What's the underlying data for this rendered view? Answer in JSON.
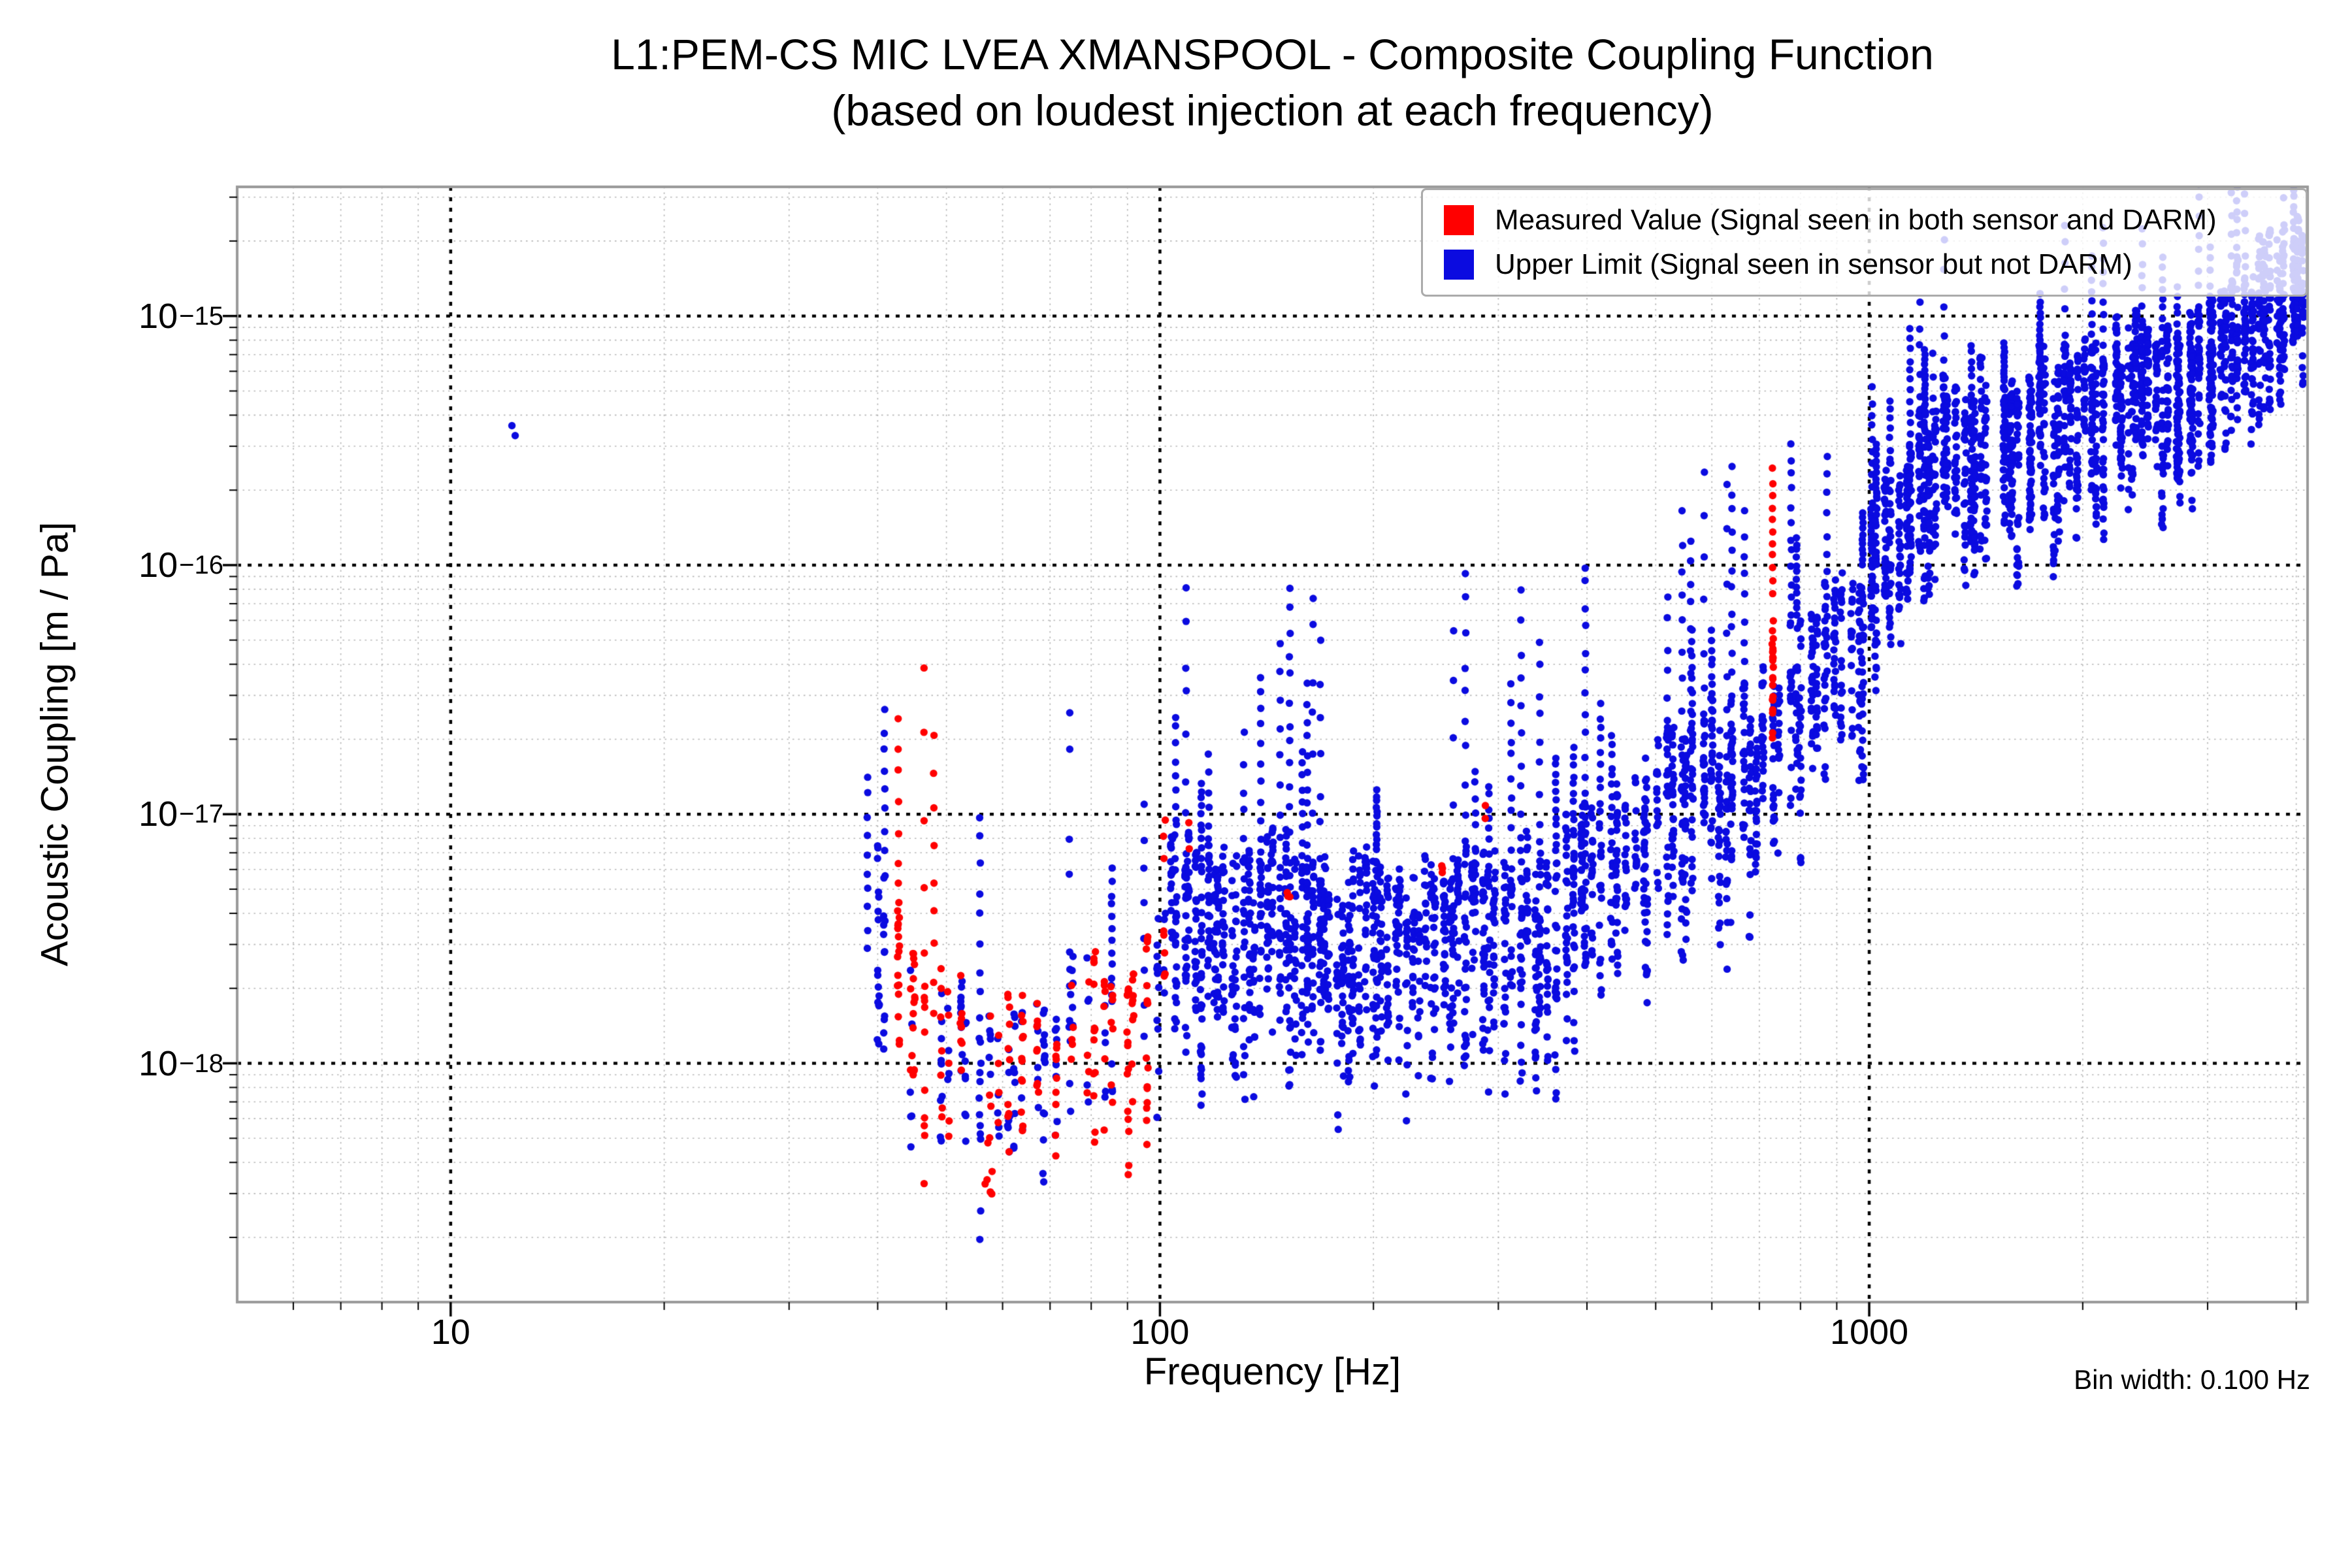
{
  "title": {
    "line1": "L1:PEM-CS MIC LVEA XMANSPOOL - Composite Coupling Function",
    "line2": "(based on loudest injection at each frequency)"
  },
  "axes": {
    "xlabel": "Frequency [Hz]",
    "ylabel": "Acoustic Coupling [m / Pa]",
    "x_ticks": [
      {
        "value": 10,
        "label": "10"
      },
      {
        "value": 100,
        "label": "100"
      },
      {
        "value": 1000,
        "label": "1000"
      }
    ],
    "y_ticks": [
      {
        "exp": -15,
        "base": "10",
        "sup": "−15"
      },
      {
        "exp": -16,
        "base": "10",
        "sup": "−16"
      },
      {
        "exp": -17,
        "base": "10",
        "sup": "−17"
      },
      {
        "exp": -18,
        "base": "10",
        "sup": "−18"
      }
    ]
  },
  "annotation": {
    "bin_width": "Bin width: 0.100 Hz"
  },
  "legend": {
    "items": [
      {
        "label": "Measured Value (Signal seen in both sensor and DARM)",
        "color": "#ff0000",
        "series": "measured"
      },
      {
        "label": "Upper Limit (Signal seen in sensor but not DARM)",
        "color": "#0b0be0",
        "series": "upper_limit"
      }
    ]
  },
  "chart_data": {
    "type": "scatter",
    "title": "L1:PEM-CS MIC LVEA XMANSPOOL - Composite Coupling Function (based on loudest injection at each frequency)",
    "xlabel": "Frequency [Hz]",
    "ylabel": "Acoustic Coupling [m / Pa]",
    "x_scale": "log",
    "y_scale": "log",
    "xlim": [
      5,
      4150
    ],
    "ylim": [
      1.1e-19,
      3.3e-15
    ],
    "grid": {
      "major": true,
      "minor": true
    },
    "legend_position": "upper right",
    "marker_radius_px": 5.7,
    "series": [
      {
        "name": "Measured Value (Signal seen in both sensor and DARM)",
        "key": "measured",
        "color": "#ff0000"
      },
      {
        "name": "Upper Limit (Signal seen in sensor but not DARM)",
        "key": "upper_limit",
        "color": "#0b0be0"
      }
    ],
    "explicit_points": {
      "upper_limit": [
        [
          12.2,
          -15.44
        ],
        [
          12.33,
          -15.48
        ]
      ]
    },
    "feature_columns": [
      {
        "series": "upper_limit",
        "f": 38.7,
        "lv_bottom": -17.55,
        "lv_top": -16.86,
        "n": 10
      },
      {
        "series": "upper_limit",
        "f": 95,
        "lv_bottom": -17.9,
        "lv_top": -17.0,
        "n": 8
      },
      {
        "series": "measured",
        "f": 48,
        "lv_bottom": -17.85,
        "lv_top": -16.72,
        "n": 9
      },
      {
        "series": "upper_limit",
        "f": 560,
        "lv_bottom": -16.95,
        "lv_top": -15.92,
        "n": 13
      },
      {
        "series": "upper_limit",
        "f": 667,
        "lv_bottom": -16.85,
        "lv_top": -15.8,
        "n": 13
      },
      {
        "series": "measured",
        "f": 731,
        "lv_bottom": -16.12,
        "lv_top": -15.63,
        "n": 11
      },
      {
        "series": "upper_limit",
        "f": 872,
        "lv_bottom": -16.45,
        "lv_top": -15.58,
        "n": 12
      },
      {
        "series": "upper_limit",
        "f": 1230,
        "lv_bottom": -15.95,
        "lv_top": -15.18,
        "n": 11
      },
      {
        "series": "upper_limit",
        "f": 2320,
        "lv_bottom": -15.78,
        "lv_top": -15.06,
        "n": 11
      },
      {
        "series": "upper_limit",
        "f": 3480,
        "lv_bottom": -15.35,
        "lv_top": -14.86,
        "n": 8
      },
      {
        "series": "upper_limit",
        "f": 3620,
        "lv_bottom": -15.25,
        "lv_top": -14.78,
        "n": 8
      },
      {
        "series": "upper_limit",
        "f": 3760,
        "lv_bottom": -15.12,
        "lv_top": -14.7,
        "n": 8
      }
    ],
    "blobs": [
      {
        "series": "measured",
        "f_range": [
          729.5,
          732.5
        ],
        "lv_range": [
          -16.55,
          -16.22
        ],
        "n": 17
      },
      {
        "series": "measured",
        "f_range": [
          730,
          732
        ],
        "lv_range": [
          -16.74,
          -16.56
        ],
        "n": 4
      },
      {
        "series": "measured",
        "f_range": [
          56.4,
          58
        ],
        "lv_range": [
          -18.62,
          -18.3
        ],
        "n": 6
      },
      {
        "series": "measured",
        "f_range": [
          101,
          102
        ],
        "lv_range": [
          -17.2,
          -17.0
        ],
        "n": 3
      },
      {
        "series": "measured",
        "f_range": [
          109.5,
          110.5
        ],
        "lv_range": [
          -17.15,
          -17.0
        ],
        "n": 2
      },
      {
        "series": "measured",
        "f_range": [
          151,
          153
        ],
        "lv_range": [
          -17.45,
          -17.3
        ],
        "n": 3
      },
      {
        "series": "measured",
        "f_range": [
          249,
          251
        ],
        "lv_range": [
          -17.3,
          -17.1
        ],
        "n": 3
      },
      {
        "series": "measured",
        "f_range": [
          287,
          289
        ],
        "lv_range": [
          -17.05,
          -16.9
        ],
        "n": 2
      }
    ],
    "bands": [
      {
        "name": "mixed-40-103Hz",
        "series": "mixed",
        "red_fraction": 0.5,
        "f_range": [
          39.5,
          103
        ],
        "clusters": 30,
        "points_per_cluster": [
          8,
          18
        ],
        "center_log10": [
          [
            39.5,
            -17.4
          ],
          [
            44,
            -17.75
          ],
          [
            48,
            -17.9
          ],
          [
            53,
            -18.0
          ],
          [
            57,
            -18.2
          ],
          [
            62,
            -18.0
          ],
          [
            68,
            -18.1
          ],
          [
            75,
            -17.9
          ],
          [
            82,
            -17.85
          ],
          [
            90,
            -18.0
          ],
          [
            97,
            -17.8
          ],
          [
            103,
            -17.7
          ]
        ],
        "bulk_spread_dex": 0.3,
        "low_extra_dex": 0.5,
        "chimney_prob": 0.32,
        "chimney_max_dex": 1.2,
        "skip_prob": 0
      },
      {
        "name": "blue-103-300Hz",
        "series": "upper_limit",
        "f_range": [
          103,
          300
        ],
        "clusters": 56,
        "points_per_cluster": [
          14,
          28
        ],
        "center_log10": [
          [
            103,
            -17.4
          ],
          [
            120,
            -17.5
          ],
          [
            140,
            -17.45
          ],
          [
            160,
            -17.55
          ],
          [
            190,
            -17.5
          ],
          [
            220,
            -17.55
          ],
          [
            260,
            -17.5
          ],
          [
            300,
            -17.45
          ]
        ],
        "bulk_spread_dex": 0.32,
        "low_extra_dex": 0.55,
        "chimney_prob": 0.4,
        "chimney_max_dex": 1.1,
        "skip_prob": 0
      },
      {
        "name": "blue-300-1000Hz",
        "series": "upper_limit",
        "f_range": [
          300,
          1000
        ],
        "clusters": 48,
        "points_per_cluster": [
          14,
          28
        ],
        "center_log10": [
          [
            300,
            -17.5
          ],
          [
            350,
            -17.45
          ],
          [
            400,
            -17.3
          ],
          [
            450,
            -17.25
          ],
          [
            500,
            -17.1
          ],
          [
            560,
            -17.0
          ],
          [
            630,
            -16.9
          ],
          [
            700,
            -16.85
          ],
          [
            780,
            -16.6
          ],
          [
            860,
            -16.45
          ],
          [
            930,
            -16.35
          ],
          [
            1000,
            -16.3
          ]
        ],
        "bulk_spread_dex": 0.33,
        "low_extra_dex": 0.5,
        "chimney_prob": 0.36,
        "chimney_max_dex": 1.0,
        "skip_prob": 0
      },
      {
        "name": "blue-1000-4150Hz",
        "series": "upper_limit",
        "f_range": [
          1000,
          4150
        ],
        "clusters": 68,
        "points_per_cluster": [
          22,
          40
        ],
        "center_log10": [
          [
            1000,
            -16.1
          ],
          [
            1080,
            -15.85
          ],
          [
            1200,
            -15.68
          ],
          [
            1400,
            -15.55
          ],
          [
            1700,
            -15.5
          ],
          [
            2000,
            -15.45
          ],
          [
            2400,
            -15.35
          ],
          [
            2800,
            -15.35
          ],
          [
            3200,
            -15.2
          ],
          [
            3600,
            -15.05
          ],
          [
            4150,
            -14.95
          ]
        ],
        "bulk_spread_dex": 0.3,
        "low_extra_dex": 0.38,
        "chimney_prob": 0.3,
        "chimney_max_dex": 0.55,
        "skip_prob": 0.06
      }
    ]
  }
}
